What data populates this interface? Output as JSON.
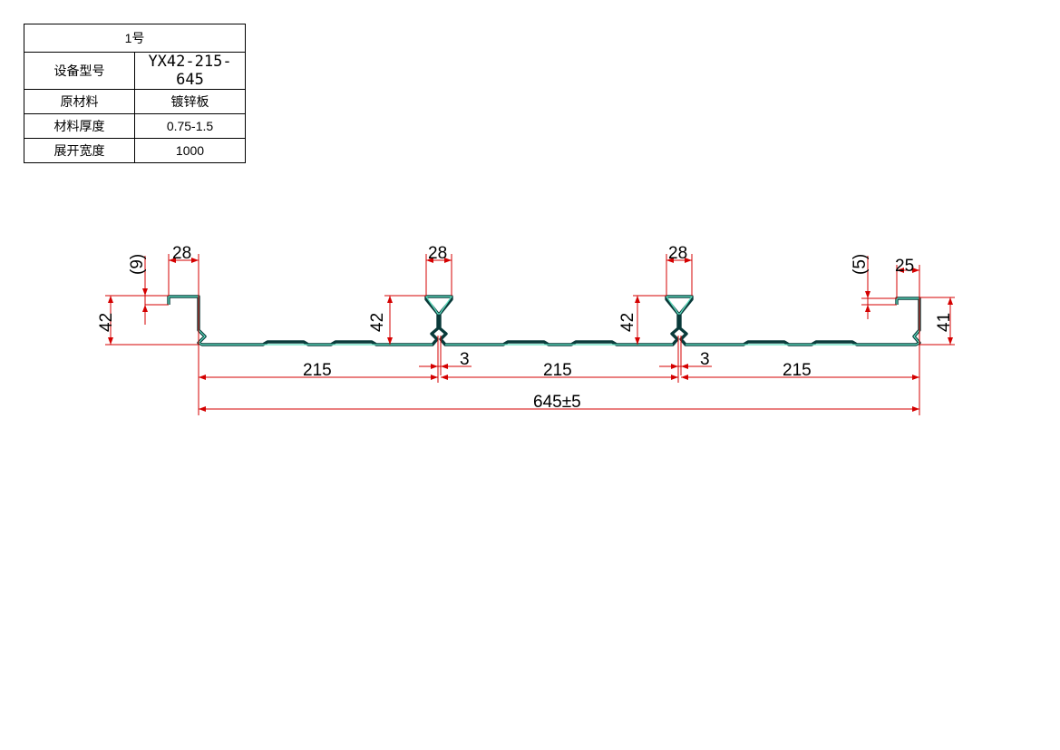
{
  "spec_table": {
    "title": "1号",
    "rows": [
      {
        "key": "设备型号",
        "value": "YX42-215-645"
      },
      {
        "key": "原材料",
        "value": "镀锌板"
      },
      {
        "key": "材料厚度",
        "value": "0.75-1.5"
      },
      {
        "key": "展开宽度",
        "value": "1000"
      }
    ]
  },
  "dimensions": {
    "left_hook_width": "28",
    "left_hook_depth": "(9)",
    "left_height": "42",
    "rib1_width": "28",
    "rib1_height": "42",
    "rib1_gap": "3",
    "rib2_width": "28",
    "rib2_height": "42",
    "rib2_gap": "3",
    "right_hook_width": "25",
    "right_hook_depth": "(5)",
    "right_height": "41",
    "pitch1": "215",
    "pitch2": "215",
    "pitch3": "215",
    "total_width": "645±5"
  },
  "colors": {
    "dimension": "#d40000",
    "profile": "#0a3a3a",
    "profile_fill": "#5fe0c0"
  }
}
